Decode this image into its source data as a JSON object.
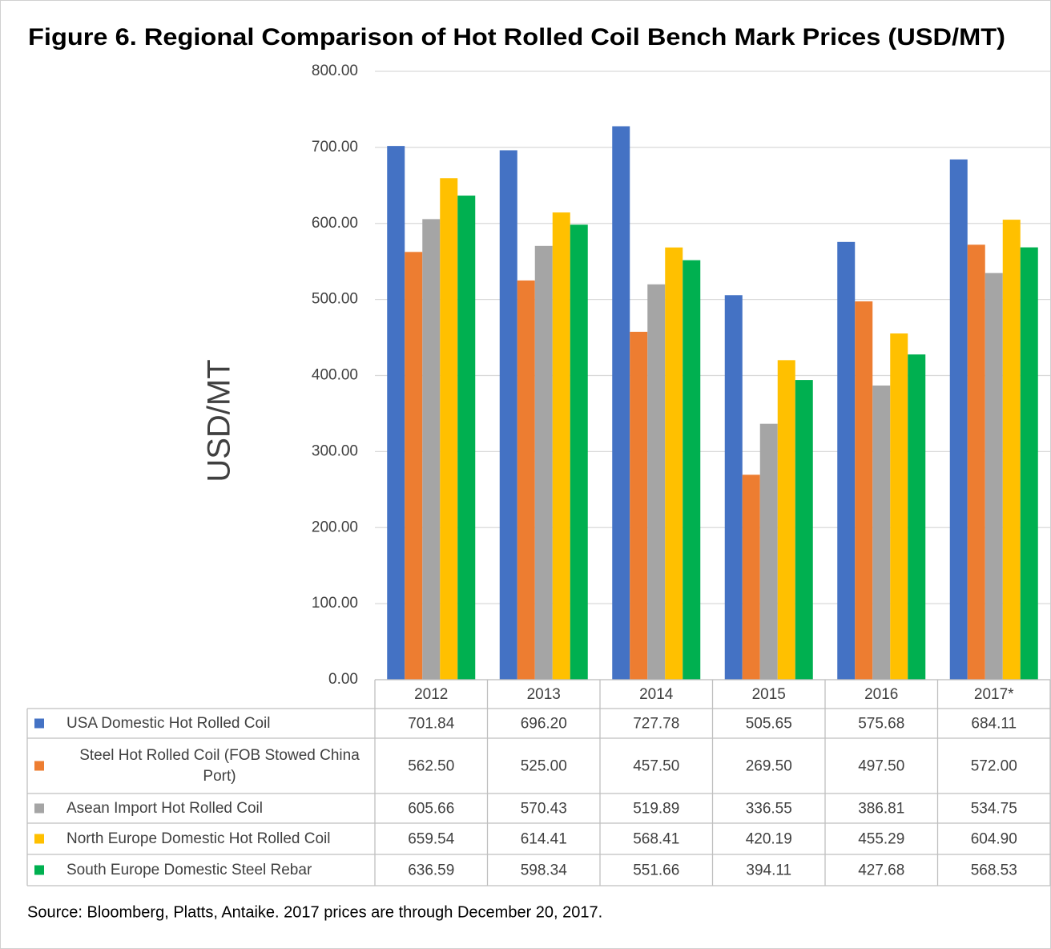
{
  "chart_data": {
    "type": "bar",
    "title": "Figure 6. Regional Comparison of Hot Rolled Coil Bench Mark Prices (USD/MT)",
    "y_label": "USD/MT",
    "source": "Source: Bloomberg, Platts, Antaike. 2017 prices are through December 20, 2017.",
    "categories": [
      "2012",
      "2013",
      "2014",
      "2015",
      "2016",
      "2017*"
    ],
    "ylim": [
      0,
      800
    ],
    "yticks": [
      {
        "value": 0,
        "label": "0.00"
      },
      {
        "value": 100,
        "label": "100.00"
      },
      {
        "value": 200,
        "label": "200.00"
      },
      {
        "value": 300,
        "label": "300.00"
      },
      {
        "value": 400,
        "label": "400.00"
      },
      {
        "value": 500,
        "label": "500.00"
      },
      {
        "value": 600,
        "label": "600.00"
      },
      {
        "value": 700,
        "label": "700.00"
      },
      {
        "value": 800,
        "label": "800.00"
      }
    ],
    "grid": true,
    "series": [
      {
        "name": "USA Domestic Hot Rolled Coil",
        "color": "#4472c4",
        "values": [
          701.84,
          696.2,
          727.78,
          505.65,
          575.68,
          684.11
        ],
        "value_labels": [
          "701.84",
          "696.20",
          "727.78",
          "505.65",
          "575.68",
          "684.11"
        ]
      },
      {
        "name": "Steel Hot Rolled Coil (FOB Stowed China Port)",
        "color": "#ed7d31",
        "values": [
          562.5,
          525,
          457.5,
          269.5,
          497.5,
          572
        ],
        "value_labels": [
          "562.50",
          "525.00",
          "457.50",
          "269.50",
          "497.50",
          "572.00"
        ]
      },
      {
        "name": "Asean Import Hot Rolled Coil",
        "color": "#a5a5a5",
        "values": [
          605.66,
          570.43,
          519.89,
          336.55,
          386.81,
          534.75
        ],
        "value_labels": [
          "605.66",
          "570.43",
          "519.89",
          "336.55",
          "386.81",
          "534.75"
        ]
      },
      {
        "name": "North Europe Domestic Hot Rolled Coil",
        "color": "#ffc000",
        "values": [
          659.54,
          614.41,
          568.41,
          420.19,
          455.29,
          604.9
        ],
        "value_labels": [
          "659.54",
          "614.41",
          "568.41",
          "420.19",
          "455.29",
          "604.90"
        ]
      },
      {
        "name": "South Europe Domestic Steel Rebar",
        "color": "#00b050",
        "values": [
          636.59,
          598.34,
          551.66,
          394.11,
          427.68,
          568.53
        ],
        "value_labels": [
          "636.59",
          "598.34",
          "551.66",
          "394.11",
          "427.68",
          "568.53"
        ]
      }
    ]
  }
}
